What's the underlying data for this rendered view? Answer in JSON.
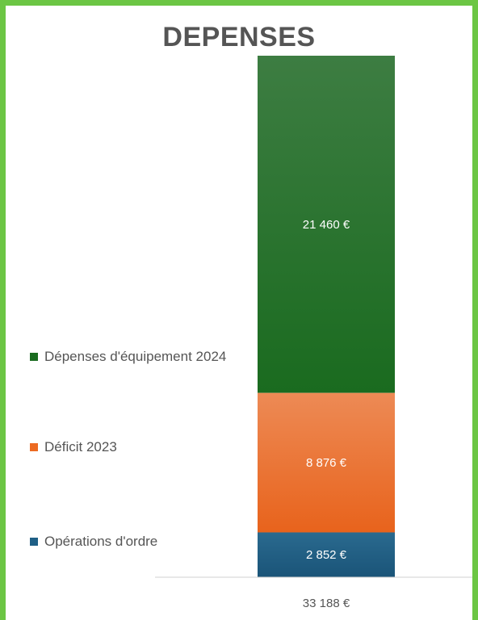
{
  "chart_data": {
    "type": "bar",
    "stacked": true,
    "title": "DEPENSES",
    "categories": [
      "33 188 €"
    ],
    "total": 33188,
    "series": [
      {
        "name": "Opérations d'ordre",
        "values": [
          2852
        ],
        "label": "2 852 €",
        "color": "#1f5f86"
      },
      {
        "name": "Déficit 2023",
        "values": [
          8876
        ],
        "label": "8 876 €",
        "color": "#ec6a22"
      },
      {
        "name": "Dépenses d'équipement 2024",
        "values": [
          21460
        ],
        "label": "21 460 €",
        "color": "#1a6b1f"
      }
    ],
    "legend_position": "left",
    "grid": false
  }
}
